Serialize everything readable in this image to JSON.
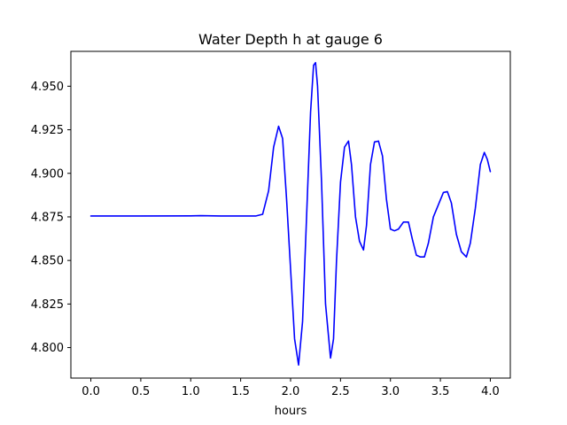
{
  "chart_data": {
    "type": "line",
    "title": "Water Depth h at gauge 6",
    "xlabel": "hours",
    "ylabel": "",
    "xlim": [
      -0.2,
      4.2
    ],
    "ylim": [
      4.7825,
      4.97
    ],
    "x_ticks": [
      0.0,
      0.5,
      1.0,
      1.5,
      2.0,
      2.5,
      3.0,
      3.5,
      4.0
    ],
    "x_tick_labels": [
      "0.0",
      "0.5",
      "1.0",
      "1.5",
      "2.0",
      "2.5",
      "3.0",
      "3.5",
      "4.0"
    ],
    "y_ticks": [
      4.8,
      4.825,
      4.85,
      4.875,
      4.9,
      4.925,
      4.95
    ],
    "y_tick_labels": [
      "4.800",
      "4.825",
      "4.850",
      "4.875",
      "4.900",
      "4.925",
      "4.950"
    ],
    "grid": false,
    "series": [
      {
        "color": "#0000ff",
        "x": [
          0.0,
          0.5,
          1.0,
          1.1,
          1.3,
          1.5,
          1.65,
          1.72,
          1.78,
          1.83,
          1.88,
          1.92,
          1.96,
          2.0,
          2.04,
          2.08,
          2.12,
          2.16,
          2.2,
          2.23,
          2.25,
          2.27,
          2.31,
          2.35,
          2.4,
          2.43,
          2.46,
          2.5,
          2.54,
          2.58,
          2.61,
          2.65,
          2.69,
          2.73,
          2.76,
          2.8,
          2.84,
          2.88,
          2.92,
          2.96,
          3.0,
          3.04,
          3.08,
          3.13,
          3.18,
          3.22,
          3.26,
          3.3,
          3.34,
          3.38,
          3.43,
          3.48,
          3.53,
          3.57,
          3.61,
          3.66,
          3.71,
          3.76,
          3.8,
          3.85,
          3.9,
          3.94,
          3.97,
          4.0
        ],
        "values": [
          4.8755,
          4.8755,
          4.8756,
          4.8757,
          4.8755,
          4.8755,
          4.8755,
          4.8765,
          4.89,
          4.915,
          4.927,
          4.92,
          4.885,
          4.845,
          4.805,
          4.79,
          4.815,
          4.875,
          4.935,
          4.962,
          4.9635,
          4.95,
          4.895,
          4.825,
          4.794,
          4.805,
          4.85,
          4.895,
          4.915,
          4.9185,
          4.905,
          4.875,
          4.861,
          4.856,
          4.87,
          4.905,
          4.918,
          4.9185,
          4.91,
          4.885,
          4.868,
          4.867,
          4.868,
          4.872,
          4.872,
          4.862,
          4.853,
          4.852,
          4.852,
          4.86,
          4.875,
          4.882,
          4.889,
          4.8895,
          4.883,
          4.865,
          4.855,
          4.852,
          4.86,
          4.88,
          4.905,
          4.912,
          4.908,
          4.901
        ]
      }
    ]
  }
}
